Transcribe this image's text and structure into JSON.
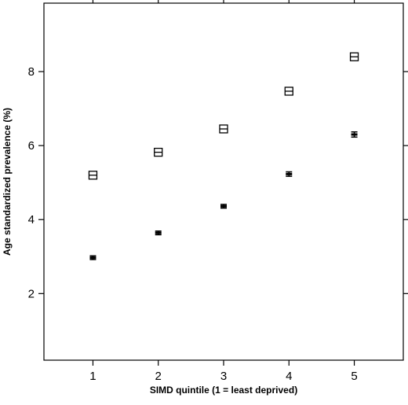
{
  "chart_data": {
    "type": "scatter",
    "title": "",
    "xlabel": "SIMD quintile (1 = least deprived)",
    "ylabel": "Age standardized prevalence (%)",
    "xlim": [
      0.25,
      5.75
    ],
    "ylim": [
      0.2,
      9.85
    ],
    "xticks": [
      1,
      2,
      3,
      4,
      5
    ],
    "yticks": [
      2,
      4,
      6,
      8
    ],
    "grid": false,
    "legend": "none",
    "series": [
      {
        "marker": "open-square",
        "x": [
          1,
          2,
          3,
          4,
          5
        ],
        "y": [
          5.2,
          5.82,
          6.45,
          7.47,
          8.4
        ],
        "ci_low": [
          5.13,
          5.75,
          6.38,
          7.39,
          8.31
        ],
        "ci_high": [
          5.27,
          5.89,
          6.52,
          7.55,
          8.49
        ]
      },
      {
        "marker": "filled-bar",
        "x": [
          1,
          2,
          3,
          4,
          5
        ],
        "y": [
          2.97,
          3.64,
          4.36,
          5.23,
          6.3
        ],
        "ci_low": [
          2.92,
          3.59,
          4.31,
          5.17,
          6.23
        ],
        "ci_high": [
          3.02,
          3.69,
          4.41,
          5.29,
          6.37
        ]
      }
    ],
    "colors": {
      "marker": "#000000",
      "frame": "#000000",
      "background": "#ffffff"
    }
  }
}
